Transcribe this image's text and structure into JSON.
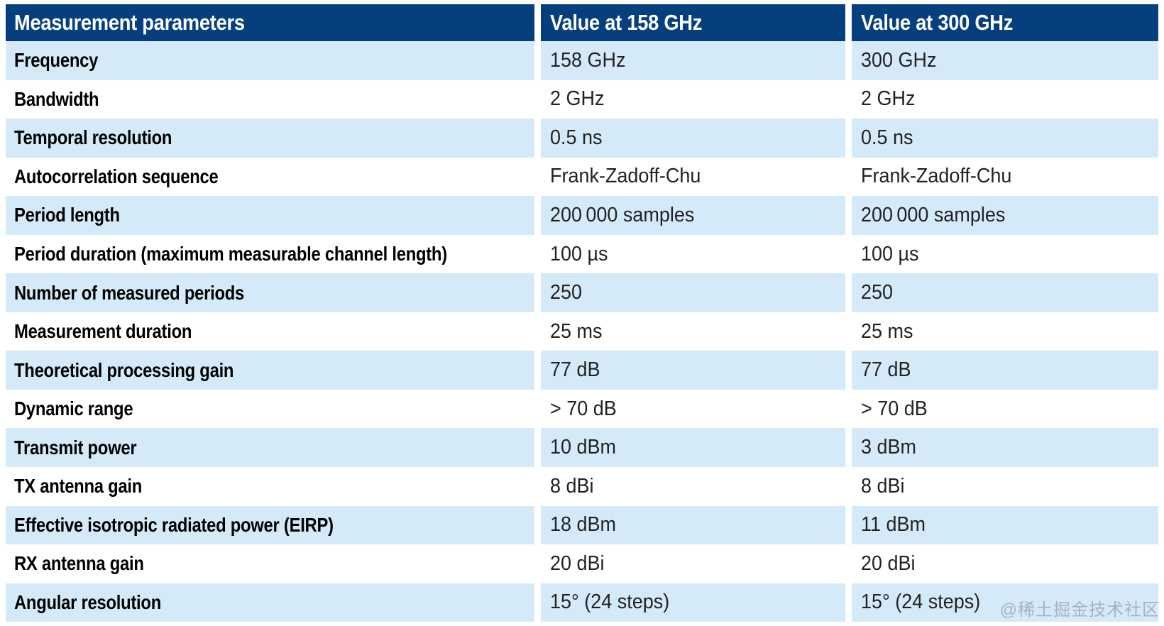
{
  "table": {
    "headers": [
      "Measurement parameters",
      "Value at 158 GHz",
      "Value at 300 GHz"
    ],
    "rows": [
      {
        "label": "Frequency",
        "v158": "158 GHz",
        "v300": "300 GHz"
      },
      {
        "label": "Bandwidth",
        "v158": "2 GHz",
        "v300": "2 GHz"
      },
      {
        "label": "Temporal resolution",
        "v158": "0.5 ns",
        "v300": "0.5 ns"
      },
      {
        "label": "Autocorrelation sequence",
        "v158": "Frank-Zadoff-Chu",
        "v300": "Frank-Zadoff-Chu"
      },
      {
        "label": "Period length",
        "v158": "200 000 samples",
        "v300": "200 000 samples"
      },
      {
        "label": "Period duration (maximum measurable channel length)",
        "v158": "100 µs",
        "v300": "100 µs"
      },
      {
        "label": "Number of measured periods",
        "v158": "250",
        "v300": "250"
      },
      {
        "label": "Measurement duration",
        "v158": "25 ms",
        "v300": "25 ms"
      },
      {
        "label": "Theoretical processing gain",
        "v158": "77 dB",
        "v300": "77 dB"
      },
      {
        "label": "Dynamic range",
        "v158": "> 70 dB",
        "v300": "> 70 dB"
      },
      {
        "label": "Transmit power",
        "v158": "10 dBm",
        "v300": "3 dBm"
      },
      {
        "label": "TX antenna gain",
        "v158": "8 dBi",
        "v300": "8 dBi"
      },
      {
        "label": "Effective isotropic radiated power (EIRP)",
        "v158": "18 dBm",
        "v300": "11 dBm"
      },
      {
        "label": "RX antenna gain",
        "v158": "20 dBi",
        "v300": "20 dBi"
      },
      {
        "label": "Angular resolution",
        "v158": "15° (24 steps)",
        "v300": "15° (24 steps)"
      }
    ]
  },
  "watermark": {
    "text": "@稀土掘金技术社区"
  },
  "colors": {
    "header_bg": "#053F7D",
    "row_alt_bg": "#D5EAF8",
    "row_bg": "#FFFFFF",
    "header_text": "#FFFFFF",
    "label_text": "#000000",
    "value_text": "#222222",
    "watermark_text": "#A6B3BE"
  }
}
